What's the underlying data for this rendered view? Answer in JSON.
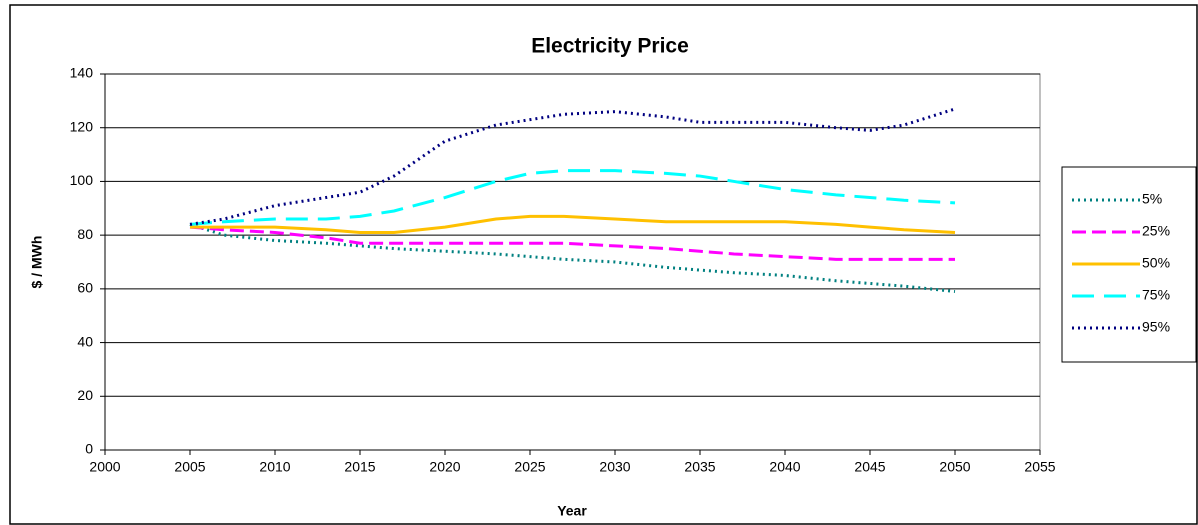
{
  "chart_data": {
    "type": "line",
    "title": "Electricity Price",
    "x_label": "Year",
    "y_label": "$ / MWh",
    "x": [
      2005,
      2007,
      2010,
      2013,
      2015,
      2017,
      2020,
      2023,
      2025,
      2027,
      2030,
      2033,
      2035,
      2037,
      2040,
      2043,
      2045,
      2047,
      2050
    ],
    "series": [
      {
        "name": "5%",
        "color": "#008080",
        "dash": "dotted",
        "values": [
          84,
          80,
          78,
          77,
          76,
          75,
          74,
          73,
          72,
          71,
          70,
          68,
          67,
          66,
          65,
          63,
          62,
          61,
          59
        ]
      },
      {
        "name": "25%",
        "color": "#ff00ff",
        "dash": "dashed",
        "values": [
          83,
          82,
          81,
          79,
          77,
          77,
          77,
          77,
          77,
          77,
          76,
          75,
          74,
          73,
          72,
          71,
          71,
          71,
          71
        ]
      },
      {
        "name": "50%",
        "color": "#ffc000",
        "dash": "solid",
        "values": [
          83,
          83,
          83,
          82,
          81,
          81,
          83,
          86,
          87,
          87,
          86,
          85,
          85,
          85,
          85,
          84,
          83,
          82,
          81
        ]
      },
      {
        "name": "75%",
        "color": "#00ffff",
        "dash": "longdash",
        "values": [
          84,
          85,
          86,
          86,
          87,
          89,
          94,
          100,
          103,
          104,
          104,
          103,
          102,
          100,
          97,
          95,
          94,
          93,
          92
        ]
      },
      {
        "name": "95%",
        "color": "#000080",
        "dash": "dotted",
        "values": [
          84,
          86,
          91,
          94,
          96,
          102,
          115,
          121,
          123,
          125,
          126,
          124,
          122,
          122,
          122,
          120,
          119,
          121,
          127
        ]
      }
    ],
    "xlim": [
      2000,
      2055
    ],
    "xticks": [
      2000,
      2005,
      2010,
      2015,
      2020,
      2025,
      2030,
      2035,
      2040,
      2045,
      2050,
      2055
    ],
    "ylim": [
      0,
      140
    ],
    "yticks": [
      0,
      20,
      40,
      60,
      80,
      100,
      120,
      140
    ],
    "grid": true,
    "legend": "right"
  }
}
